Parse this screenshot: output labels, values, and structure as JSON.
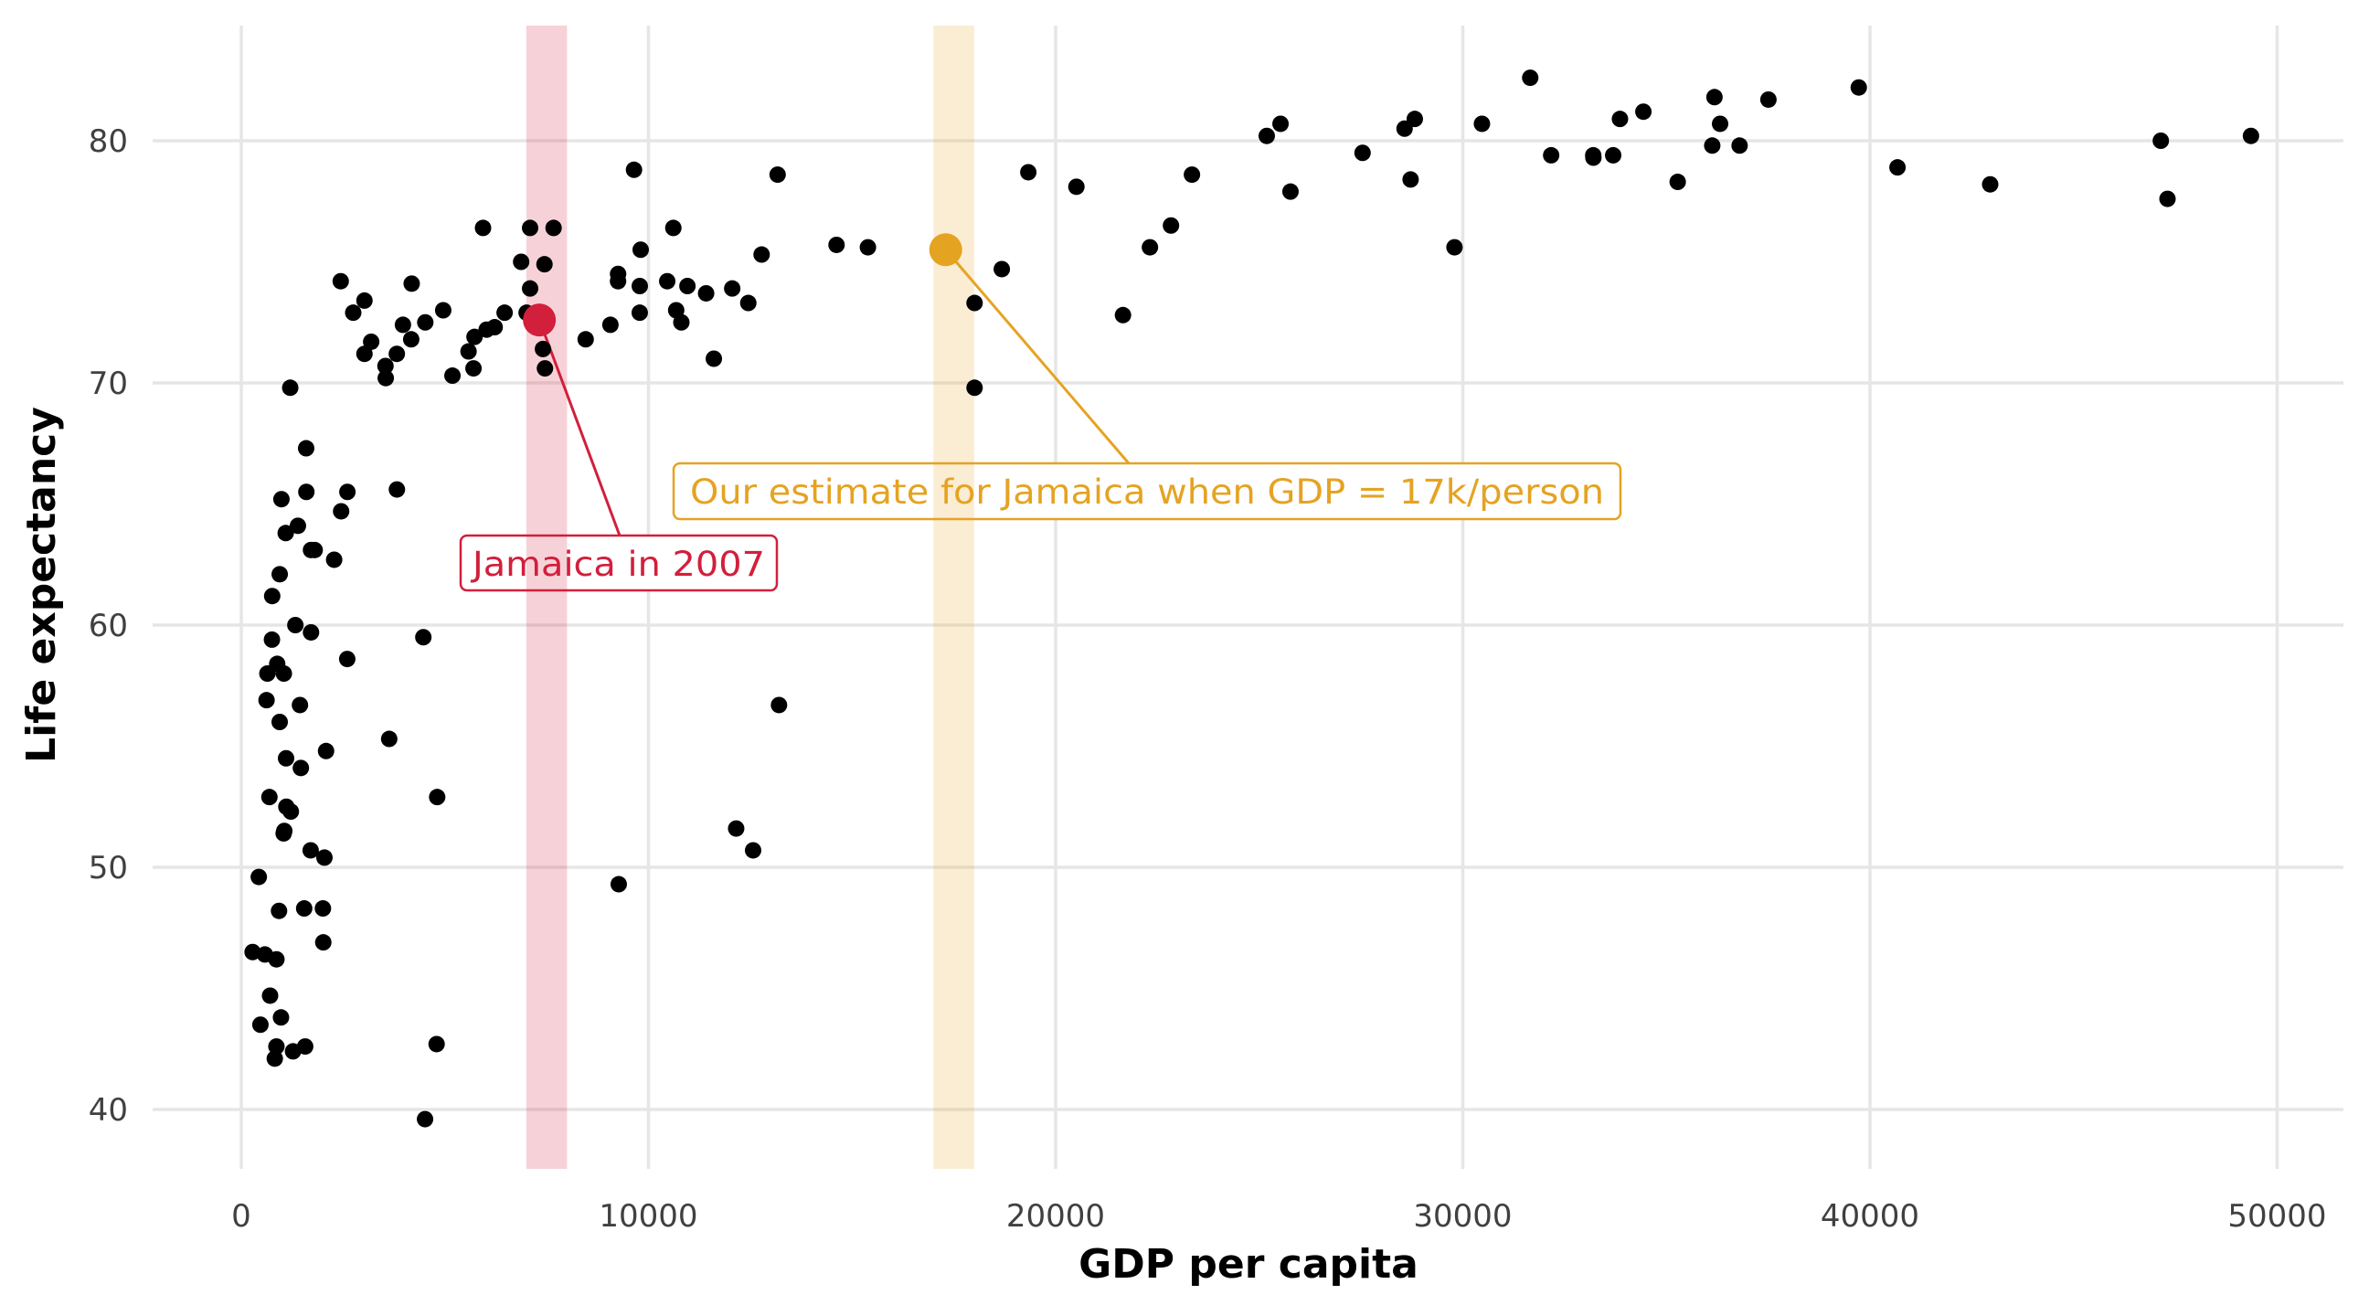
{
  "chart_data": {
    "type": "scatter",
    "title": "",
    "xlabel": "GDP per capita",
    "ylabel": "Life expectancy",
    "xlim": [
      -2000,
      51500
    ],
    "ylim": [
      37.7,
      84.8
    ],
    "x_ticks": [
      0,
      10000,
      20000,
      30000,
      40000,
      50000
    ],
    "x_tick_labels": [
      "0",
      "10000",
      "20000",
      "30000",
      "40000",
      "50000"
    ],
    "y_ticks": [
      40,
      50,
      60,
      70,
      80
    ],
    "y_tick_labels": [
      "40",
      "50",
      "60",
      "70",
      "80"
    ],
    "grid": true,
    "legend": "none",
    "colors": {
      "points": "#000000",
      "jamaica": "#D21F3C",
      "estimate": "#E5A322",
      "grid": "#E6E6E6"
    },
    "bands": [
      {
        "name": "jamaica-band",
        "xmin": 7000,
        "xmax": 8000,
        "color": "#D21F3C",
        "opacity": 0.2
      },
      {
        "name": "estimate-band",
        "xmin": 17000,
        "xmax": 18000,
        "color": "#E5A322",
        "opacity": 0.2
      }
    ],
    "highlights": [
      {
        "name": "jamaica-2007",
        "x": 7321,
        "y": 72.6,
        "color": "#D21F3C",
        "label": "Jamaica in 2007"
      },
      {
        "name": "jamaica-estimate",
        "x": 17300,
        "y": 75.5,
        "color": "#E5A322",
        "label": "Our estimate for Jamaica when GDP = 17k/person"
      }
    ],
    "points": [
      [
        975,
        43.8
      ],
      [
        5937,
        76.4
      ],
      [
        6223,
        72.3
      ],
      [
        4797,
        42.7
      ],
      [
        12779,
        75.3
      ],
      [
        34435,
        81.2
      ],
      [
        36126,
        79.8
      ],
      [
        29796,
        75.6
      ],
      [
        1391,
        64.1
      ],
      [
        33693,
        79.4
      ],
      [
        1441,
        56.7
      ],
      [
        3822,
        65.6
      ],
      [
        7446,
        74.9
      ],
      [
        12570,
        50.7
      ],
      [
        9066,
        72.4
      ],
      [
        10681,
        73.0
      ],
      [
        1217,
        52.3
      ],
      [
        430,
        49.6
      ],
      [
        1713,
        59.7
      ],
      [
        2042,
        50.4
      ],
      [
        36319,
        80.7
      ],
      [
        707,
        44.7
      ],
      [
        1704,
        50.7
      ],
      [
        13172,
        78.6
      ],
      [
        4959,
        73.0
      ],
      [
        7007,
        72.9
      ],
      [
        986,
        65.2
      ],
      [
        278,
        46.5
      ],
      [
        3633,
        55.3
      ],
      [
        9645,
        78.8
      ],
      [
        1545,
        48.3
      ],
      [
        14619,
        75.7
      ],
      [
        22833,
        76.5
      ],
      [
        35278,
        78.3
      ],
      [
        2082,
        54.8
      ],
      [
        6025,
        72.2
      ],
      [
        6873,
        75.0
      ],
      [
        5581,
        71.3
      ],
      [
        5728,
        71.9
      ],
      [
        12154,
        51.6
      ],
      [
        641,
        58.0
      ],
      [
        691,
        52.9
      ],
      [
        33207,
        79.3
      ],
      [
        30470,
        80.7
      ],
      [
        13206,
        56.7
      ],
      [
        753,
        59.4
      ],
      [
        32170,
        79.4
      ],
      [
        1328,
        60.0
      ],
      [
        27538,
        79.5
      ],
      [
        5186,
        70.3
      ],
      [
        943,
        56.0
      ],
      [
        580,
        46.4
      ],
      [
        1202,
        69.8
      ],
      [
        3548,
        70.2
      ],
      [
        39725,
        82.2
      ],
      [
        18009,
        73.3
      ],
      [
        36181,
        81.8
      ],
      [
        2452,
        64.7
      ],
      [
        3541,
        70.7
      ],
      [
        11606,
        71.0
      ],
      [
        4471,
        59.5
      ],
      [
        40676,
        78.9
      ],
      [
        25523,
        80.7
      ],
      [
        28570,
        80.5
      ],
      [
        7321,
        72.6
      ],
      [
        31656,
        82.6
      ],
      [
        4519,
        72.5
      ],
      [
        1463,
        54.1
      ],
      [
        1593,
        67.3
      ],
      [
        23348,
        78.6
      ],
      [
        47307,
        77.6
      ],
      [
        10461,
        74.2
      ],
      [
        1569,
        42.6
      ],
      [
        12057,
        73.9
      ],
      [
        1045,
        58.0
      ],
      [
        1803,
        63.1
      ],
      [
        10957,
        74.0
      ],
      [
        9253,
        74.2
      ],
      [
        759,
        61.2
      ],
      [
        12452,
        73.3
      ],
      [
        7093,
        76.4
      ],
      [
        3025,
        71.2
      ],
      [
        9254,
        74.5
      ],
      [
        823,
        42.1
      ],
      [
        944,
        62.1
      ],
      [
        4811,
        52.9
      ],
      [
        1091,
        63.8
      ],
      [
        36798,
        79.8
      ],
      [
        25185,
        80.2
      ],
      [
        2749,
        72.9
      ],
      [
        620,
        56.9
      ],
      [
        2014,
        46.9
      ],
      [
        49357,
        80.2
      ],
      [
        22316,
        75.6
      ],
      [
        2606,
        65.5
      ],
      [
        9809,
        75.5
      ],
      [
        4173,
        71.8
      ],
      [
        7409,
        71.4
      ],
      [
        3190,
        71.7
      ],
      [
        15390,
        75.6
      ],
      [
        20510,
        78.1
      ],
      [
        19329,
        78.7
      ],
      [
        10808,
        72.5
      ],
      [
        9786,
        72.9
      ],
      [
        863,
        46.2
      ],
      [
        1598,
        65.5
      ],
      [
        21654,
        72.8
      ],
      [
        1712,
        63.1
      ],
      [
        9787,
        74.0
      ],
      [
        863,
        42.6
      ],
      [
        47143,
        80.0
      ],
      [
        18678,
        74.7
      ],
      [
        25768,
        77.9
      ],
      [
        927,
        48.2
      ],
      [
        9270,
        49.3
      ],
      [
        28821,
        80.9
      ],
      [
        3970,
        72.4
      ],
      [
        2602,
        58.6
      ],
      [
        4513,
        39.6
      ],
      [
        33860,
        80.9
      ],
      [
        37506,
        81.7
      ],
      [
        4185,
        74.1
      ],
      [
        28718,
        78.4
      ],
      [
        1107,
        52.5
      ],
      [
        7458,
        70.6
      ],
      [
        882,
        58.4
      ],
      [
        18009,
        69.8
      ],
      [
        7093,
        73.9
      ],
      [
        8458,
        71.8
      ],
      [
        1056,
        51.5
      ],
      [
        33203,
        79.4
      ],
      [
        42952,
        78.2
      ],
      [
        10611,
        76.4
      ],
      [
        11416,
        73.7
      ],
      [
        2442,
        74.2
      ],
      [
        3025,
        73.4
      ],
      [
        2281,
        62.7
      ],
      [
        1271,
        42.4
      ],
      [
        470,
        43.5
      ],
      [
        2005,
        48.3
      ],
      [
        7670,
        76.4
      ],
      [
        3820,
        71.2
      ],
      [
        5703,
        70.6
      ],
      [
        1040,
        51.4
      ],
      [
        1100,
        54.5
      ],
      [
        6467,
        72.9
      ]
    ]
  },
  "labels": {
    "jamaica": "Jamaica in 2007",
    "estimate": "Our estimate for Jamaica when GDP = 17k/person"
  }
}
